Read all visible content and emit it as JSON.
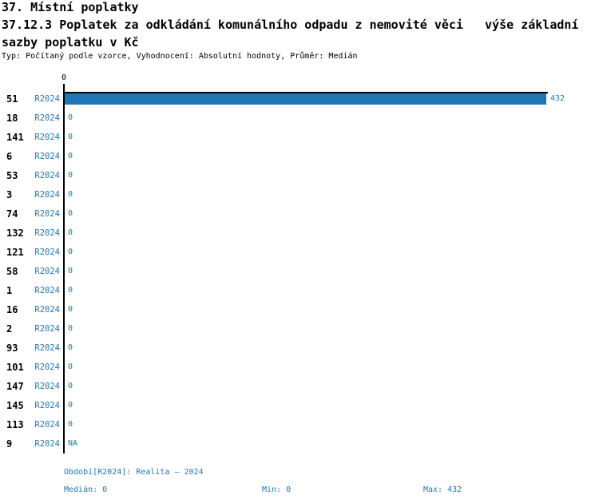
{
  "header": {
    "title_line1": "37. Místní poplatky",
    "title_line2": "37.12.3 Poplatek za odkládání komunálního odpadu z nemovité věci   výše základní",
    "title_line3": "sazby poplatku v Kč",
    "subtitle": "Typ: Počítaný podle vzorce, Vyhodnocení: Absolutní hodnoty, Průměr: Medián"
  },
  "chart_data": {
    "type": "bar",
    "orientation": "horizontal",
    "section_title": "37. Místní poplatky",
    "title": "37.12.3 Poplatek za odkládání komunálního odpadu z nemovité věci   výše základní sazby poplatku v Kč",
    "subtitle": "Typ: Počítaný podle vzorce, Vyhodnocení: Absolutní hodnoty, Průměr: Medián",
    "series_name": "R2024",
    "categories": [
      "51",
      "18",
      "141",
      "6",
      "53",
      "3",
      "74",
      "132",
      "121",
      "58",
      "1",
      "16",
      "2",
      "93",
      "101",
      "147",
      "145",
      "113",
      "9"
    ],
    "values": [
      432,
      0,
      0,
      0,
      0,
      0,
      0,
      0,
      0,
      0,
      0,
      0,
      0,
      0,
      0,
      0,
      0,
      0,
      null
    ],
    "value_labels": [
      "432",
      "0",
      "0",
      "0",
      "0",
      "0",
      "0",
      "0",
      "0",
      "0",
      "0",
      "0",
      "0",
      "0",
      "0",
      "0",
      "0",
      "0",
      "NA"
    ],
    "xlim": [
      0,
      432
    ],
    "x_ticks": [
      {
        "value": 0,
        "label": "0"
      }
    ],
    "grid": false,
    "legend": false,
    "period": "Realita – 2024",
    "stats": {
      "median": 0,
      "min": 0,
      "max": 432
    },
    "colors": {
      "bar": "#1f77b4",
      "value_label": "#1f77b4",
      "axis": "#000000"
    }
  },
  "footer": {
    "period_info": "Období[R2024]: Realita – 2024",
    "median": "Medián: 0",
    "min": "Min: 0",
    "max": "Max: 432"
  }
}
